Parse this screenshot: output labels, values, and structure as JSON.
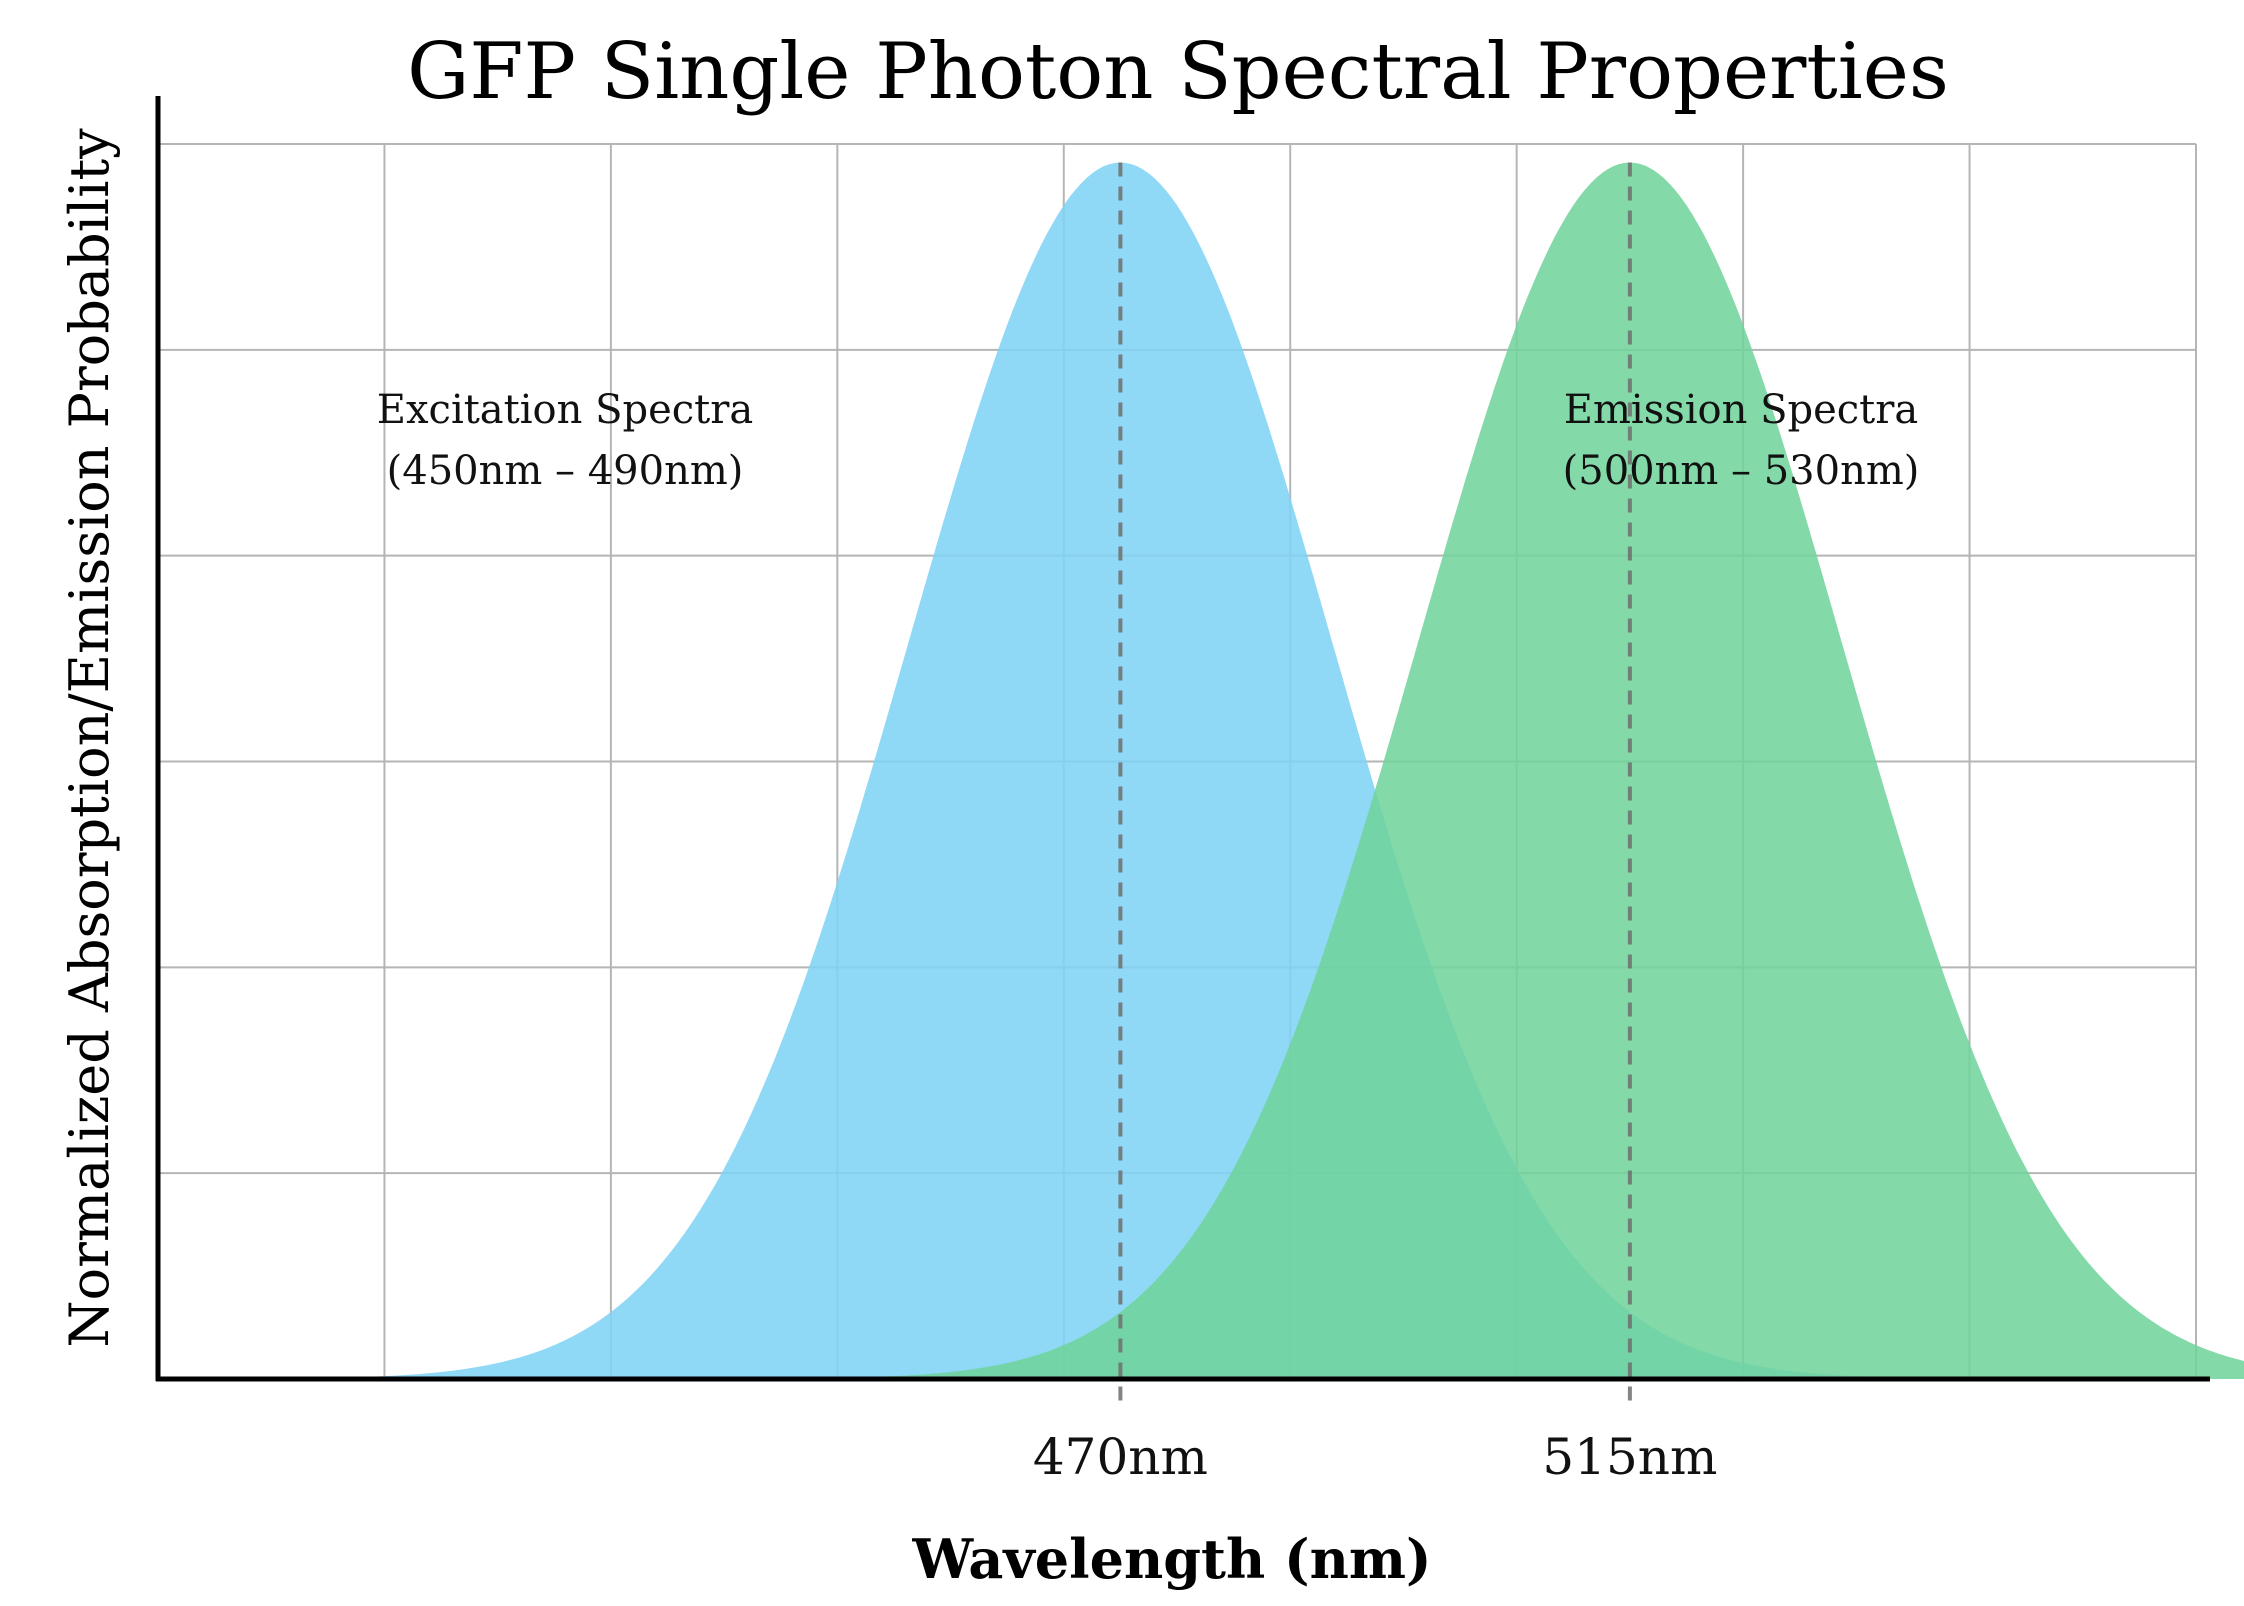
{
  "chart_data": {
    "type": "area",
    "title": "GFP Single Photon Spectral Properties",
    "xlabel": "Wavelength (nm)",
    "ylabel": "Normalized Absorption/Emission Probability",
    "xlim": [
      385,
      565
    ],
    "ylim": [
      0,
      1.0
    ],
    "grid": true,
    "xticks": [
      {
        "value": 470,
        "label": "470nm"
      },
      {
        "value": 515,
        "label": "515nm"
      }
    ],
    "series": [
      {
        "name": "Excitation Spectra",
        "peak": 470,
        "peak_value": 0.985,
        "half_width": 22,
        "color": "#7fd3f5",
        "opacity": 0.88,
        "x": [
          395,
          405,
          415,
          425,
          435,
          445,
          455,
          465,
          470,
          475,
          485,
          495,
          505,
          515,
          525,
          535,
          545,
          555
        ],
        "y": [
          0.003,
          0.02,
          0.07,
          0.17,
          0.33,
          0.54,
          0.77,
          0.95,
          0.985,
          0.95,
          0.77,
          0.54,
          0.33,
          0.17,
          0.07,
          0.02,
          0.004,
          0.001
        ]
      },
      {
        "name": "Emission Spectra",
        "peak": 515,
        "peak_value": 0.985,
        "half_width": 22,
        "color": "#6fd39a",
        "opacity": 0.86,
        "x": [
          450,
          460,
          470,
          480,
          490,
          500,
          510,
          515,
          520,
          530,
          540,
          550,
          560
        ],
        "y": [
          0.02,
          0.07,
          0.17,
          0.33,
          0.54,
          0.77,
          0.95,
          0.985,
          0.95,
          0.77,
          0.54,
          0.33,
          0.17
        ]
      }
    ],
    "peak_lines": [
      470,
      515
    ],
    "annotations": [
      {
        "series": "Excitation Spectra",
        "line1": "Excitation Spectra",
        "line2": "(450nm – 490nm)",
        "position": "upper-left"
      },
      {
        "series": "Emission Spectra",
        "line1": "Emission Spectra",
        "line2": "(500nm – 530nm)",
        "position": "upper-right"
      }
    ]
  }
}
